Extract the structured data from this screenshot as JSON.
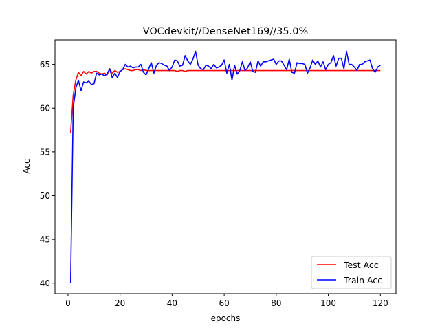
{
  "chart_data": {
    "type": "line",
    "title": "VOCdevkit//DenseNet169//35.0%",
    "xlabel": "epochs",
    "ylabel": "Acc",
    "xlim": [
      -5,
      126
    ],
    "ylim": [
      38.8,
      67.8
    ],
    "xticks": [
      0,
      20,
      40,
      60,
      80,
      100,
      120
    ],
    "yticks": [
      40,
      45,
      50,
      55,
      60,
      65
    ],
    "legend_position": "lower right",
    "series": [
      {
        "name": "Test Acc",
        "color": "#ff0000",
        "x": [
          1,
          2,
          3,
          4,
          5,
          6,
          7,
          8,
          9,
          10,
          11,
          12,
          13,
          14,
          15,
          16,
          17,
          18,
          19,
          20,
          21,
          22,
          23,
          24,
          25,
          26,
          27,
          28,
          29,
          30,
          31,
          32,
          33,
          34,
          35,
          36,
          37,
          38,
          39,
          40,
          41,
          42,
          43,
          44,
          45,
          46,
          47,
          48,
          49,
          50,
          51,
          52,
          53,
          54,
          55,
          56,
          57,
          58,
          59,
          60,
          61,
          62,
          63,
          64,
          65,
          66,
          67,
          68,
          69,
          70,
          71,
          72,
          73,
          74,
          75,
          76,
          77,
          78,
          79,
          80,
          81,
          82,
          83,
          84,
          85,
          86,
          87,
          88,
          89,
          90,
          91,
          92,
          93,
          94,
          95,
          96,
          97,
          98,
          99,
          100,
          101,
          102,
          103,
          104,
          105,
          106,
          107,
          108,
          109,
          110,
          111,
          112,
          113,
          114,
          115,
          116,
          117,
          118,
          119,
          120
        ],
        "values": [
          57.2,
          61.5,
          63.2,
          64.1,
          63.7,
          64.2,
          63.9,
          64.2,
          64.0,
          64.2,
          64.2,
          64.0,
          63.9,
          64.0,
          63.8,
          64.5,
          64.0,
          64.3,
          64.1,
          64.2,
          64.4,
          64.5,
          64.4,
          64.3,
          64.3,
          64.4,
          64.4,
          64.3,
          64.4,
          64.3,
          64.3,
          64.3,
          64.3,
          64.3,
          64.3,
          64.3,
          64.3,
          64.3,
          64.3,
          64.3,
          64.3,
          64.2,
          64.3,
          64.3,
          64.2,
          64.3,
          64.3,
          64.3,
          64.3,
          64.3,
          64.3,
          64.3,
          64.3,
          64.3,
          64.3,
          64.3,
          64.3,
          64.3,
          64.3,
          64.3,
          64.3,
          64.3,
          64.3,
          64.3,
          64.3,
          64.3,
          64.3,
          64.3,
          64.3,
          64.3,
          64.3,
          64.3,
          64.3,
          64.3,
          64.3,
          64.3,
          64.3,
          64.3,
          64.3,
          64.3,
          64.3,
          64.3,
          64.3,
          64.3,
          64.3,
          64.3,
          64.3,
          64.3,
          64.3,
          64.3,
          64.3,
          64.3,
          64.3,
          64.3,
          64.3,
          64.3,
          64.3,
          64.3,
          64.3,
          64.3,
          64.3,
          64.3,
          64.3,
          64.3,
          64.3,
          64.3,
          64.3,
          64.3,
          64.3,
          64.3,
          64.3,
          64.3,
          64.3,
          64.3,
          64.3,
          64.3,
          64.3,
          64.3,
          64.3,
          64.3
        ]
      },
      {
        "name": "Train Acc",
        "color": "#0000ff",
        "x": [
          1,
          2,
          3,
          4,
          5,
          6,
          7,
          8,
          9,
          10,
          11,
          12,
          13,
          14,
          15,
          16,
          17,
          18,
          19,
          20,
          21,
          22,
          23,
          24,
          25,
          26,
          27,
          28,
          29,
          30,
          31,
          32,
          33,
          34,
          35,
          36,
          37,
          38,
          39,
          40,
          41,
          42,
          43,
          44,
          45,
          46,
          47,
          48,
          49,
          50,
          51,
          52,
          53,
          54,
          55,
          56,
          57,
          58,
          59,
          60,
          61,
          62,
          63,
          64,
          65,
          66,
          67,
          68,
          69,
          70,
          71,
          72,
          73,
          74,
          75,
          76,
          77,
          78,
          79,
          80,
          81,
          82,
          83,
          84,
          85,
          86,
          87,
          88,
          89,
          90,
          91,
          92,
          93,
          94,
          95,
          96,
          97,
          98,
          99,
          100,
          101,
          102,
          103,
          104,
          105,
          106,
          107,
          108,
          109,
          110,
          111,
          112,
          113,
          114,
          115,
          116,
          117,
          118,
          119,
          120
        ],
        "values": [
          40.0,
          60.0,
          62.3,
          63.2,
          62.0,
          63.0,
          62.9,
          63.1,
          62.7,
          62.8,
          64.0,
          63.8,
          63.9,
          63.7,
          63.9,
          64.5,
          63.5,
          64.0,
          63.5,
          64.2,
          64.4,
          65.0,
          64.7,
          64.8,
          64.6,
          64.7,
          64.7,
          65.0,
          64.1,
          63.8,
          64.5,
          65.2,
          64.0,
          64.9,
          65.2,
          65.1,
          64.9,
          64.8,
          64.3,
          64.7,
          65.5,
          65.4,
          64.8,
          64.9,
          66.0,
          65.4,
          65.0,
          65.6,
          66.5,
          64.9,
          64.5,
          64.4,
          64.9,
          64.8,
          64.5,
          65.0,
          64.6,
          64.7,
          64.9,
          65.5,
          64.0,
          65.0,
          63.2,
          64.9,
          63.9,
          64.3,
          65.3,
          64.3,
          64.6,
          65.3,
          64.2,
          64.1,
          65.4,
          64.8,
          65.3,
          65.3,
          65.4,
          65.5,
          65.6,
          65.0,
          65.4,
          65.4,
          64.9,
          64.4,
          65.6,
          64.1,
          64.0,
          65.2,
          65.1,
          65.1,
          65.0,
          64.0,
          64.6,
          65.5,
          65.0,
          65.4,
          64.7,
          65.3,
          64.4,
          65.0,
          65.2,
          66.0,
          64.8,
          65.7,
          65.7,
          64.5,
          66.5,
          65.0,
          65.0,
          64.7,
          64.3,
          65.0,
          65.0,
          65.3,
          65.4,
          65.5,
          64.5,
          64.1,
          64.7,
          64.9
        ]
      }
    ]
  }
}
